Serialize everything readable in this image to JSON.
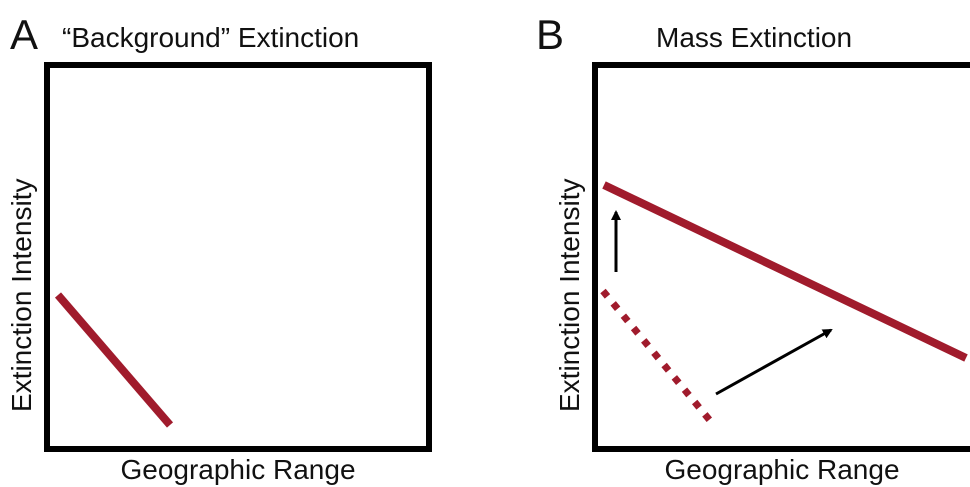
{
  "panels": [
    {
      "letter": "A",
      "title": "“Background” Extinction",
      "xlabel": "Geographic Range",
      "ylabel": "Extinction Intensity"
    },
    {
      "letter": "B",
      "title": "Mass Extinction",
      "xlabel": "Geographic Range",
      "ylabel": "Extinction Intensity"
    }
  ],
  "colors": {
    "trend_line": "#a01b2c",
    "arrow": "#000000",
    "frame": "#000000"
  }
}
